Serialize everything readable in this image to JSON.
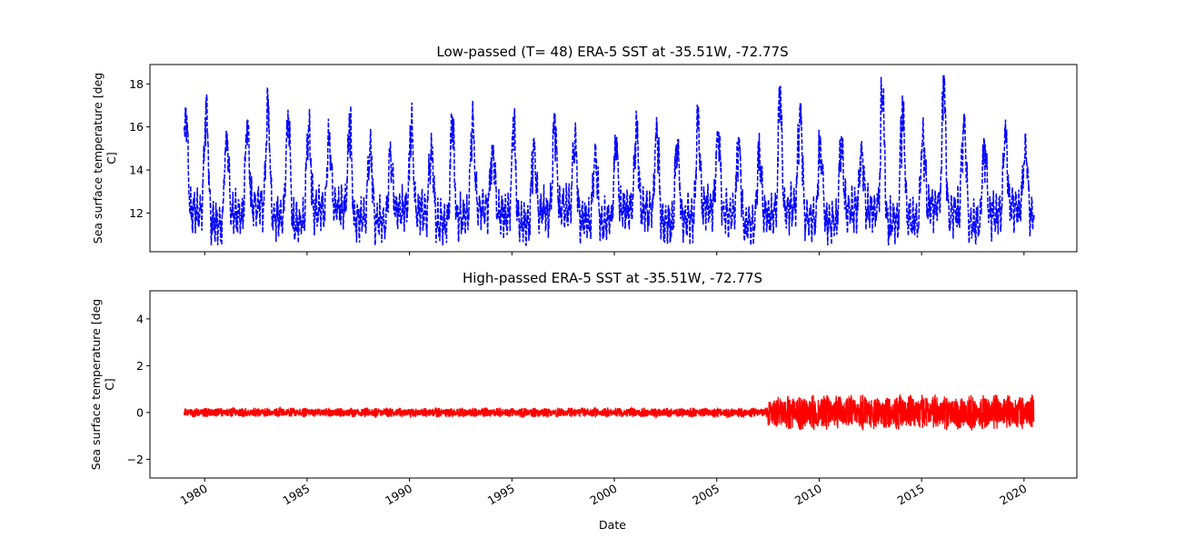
{
  "chart_data": [
    {
      "type": "line",
      "title": "Low-passed (T= 48) ERA-5 SST at -35.51W, -72.77S",
      "ylabel_line1": "Sea surface temperature [deg",
      "ylabel_line2": "C]",
      "xlabel": "",
      "xlim": [
        "1977-05-01",
        "2022-08-01"
      ],
      "ylim": [
        10.2,
        18.9
      ],
      "yticks": [
        "12",
        "14",
        "16",
        "18"
      ],
      "xticks": [
        "1980",
        "1985",
        "1990",
        "1995",
        "2000",
        "2005",
        "2010",
        "2015",
        "2020"
      ],
      "tick_labels_shown": false,
      "series": [
        {
          "color": "#0000ff",
          "style": "dashed",
          "data_range": [
            "1979-01-01",
            "2020-06-30"
          ],
          "approx_min": 10.5,
          "approx_max": 18.4,
          "annual_peaks": [
            {
              "year": 1979,
              "value": 16.9
            },
            {
              "year": 1980,
              "value": 17.2
            },
            {
              "year": 1981,
              "value": 15.7
            },
            {
              "year": 1982,
              "value": 16.3
            },
            {
              "year": 1983,
              "value": 17.3
            },
            {
              "year": 1984,
              "value": 16.8
            },
            {
              "year": 1985,
              "value": 16.1
            },
            {
              "year": 1986,
              "value": 15.7
            },
            {
              "year": 1987,
              "value": 16.5
            },
            {
              "year": 1988,
              "value": 15.5
            },
            {
              "year": 1989,
              "value": 14.7
            },
            {
              "year": 1990,
              "value": 16.6
            },
            {
              "year": 1991,
              "value": 15.1
            },
            {
              "year": 1992,
              "value": 16.5
            },
            {
              "year": 1993,
              "value": 16.5
            },
            {
              "year": 1994,
              "value": 15.0
            },
            {
              "year": 1995,
              "value": 16.5
            },
            {
              "year": 1996,
              "value": 15.2
            },
            {
              "year": 1997,
              "value": 16.6
            },
            {
              "year": 1998,
              "value": 15.8
            },
            {
              "year": 1999,
              "value": 14.9
            },
            {
              "year": 2000,
              "value": 15.5
            },
            {
              "year": 2001,
              "value": 16.2
            },
            {
              "year": 2002,
              "value": 16.2
            },
            {
              "year": 2003,
              "value": 15.2
            },
            {
              "year": 2004,
              "value": 16.6
            },
            {
              "year": 2005,
              "value": 15.8
            },
            {
              "year": 2006,
              "value": 15.5
            },
            {
              "year": 2007,
              "value": 15.0
            },
            {
              "year": 2008,
              "value": 17.9
            },
            {
              "year": 2009,
              "value": 17.1
            },
            {
              "year": 2010,
              "value": 15.1
            },
            {
              "year": 2011,
              "value": 15.6
            },
            {
              "year": 2012,
              "value": 15.0
            },
            {
              "year": 2013,
              "value": 18.4
            },
            {
              "year": 2014,
              "value": 17.1
            },
            {
              "year": 2015,
              "value": 15.8
            },
            {
              "year": 2016,
              "value": 18.5
            },
            {
              "year": 2017,
              "value": 16.6
            },
            {
              "year": 2018,
              "value": 15.2
            },
            {
              "year": 2019,
              "value": 16.0
            },
            {
              "year": 2020,
              "value": 15.3
            }
          ]
        }
      ]
    },
    {
      "type": "line",
      "title": "High-passed ERA-5 SST at -35.51W, -72.77S",
      "ylabel_line1": "Sea surface temperature [deg",
      "ylabel_line2": "C]",
      "xlabel": "Date",
      "xlim": [
        "1977-05-01",
        "2022-08-01"
      ],
      "ylim": [
        -2.8,
        5.2
      ],
      "yticks": [
        "−2",
        "0",
        "2",
        "4"
      ],
      "xticks": [
        "1980",
        "1985",
        "1990",
        "1995",
        "2000",
        "2005",
        "2010",
        "2015",
        "2020"
      ],
      "tick_labels_shown": true,
      "series": [
        {
          "color": "#ff0000",
          "style": "solid",
          "data_range": [
            "1979-01-01",
            "2020-06-30"
          ],
          "amplitude_segments": [
            {
              "from": "1979-01-01",
              "to": "2007-06-30",
              "amplitude": 0.15
            },
            {
              "from": "2007-07-01",
              "to": "2020-06-30",
              "amplitude": 0.55
            }
          ],
          "approx_min": -0.85,
          "approx_max": 0.85
        }
      ]
    }
  ]
}
